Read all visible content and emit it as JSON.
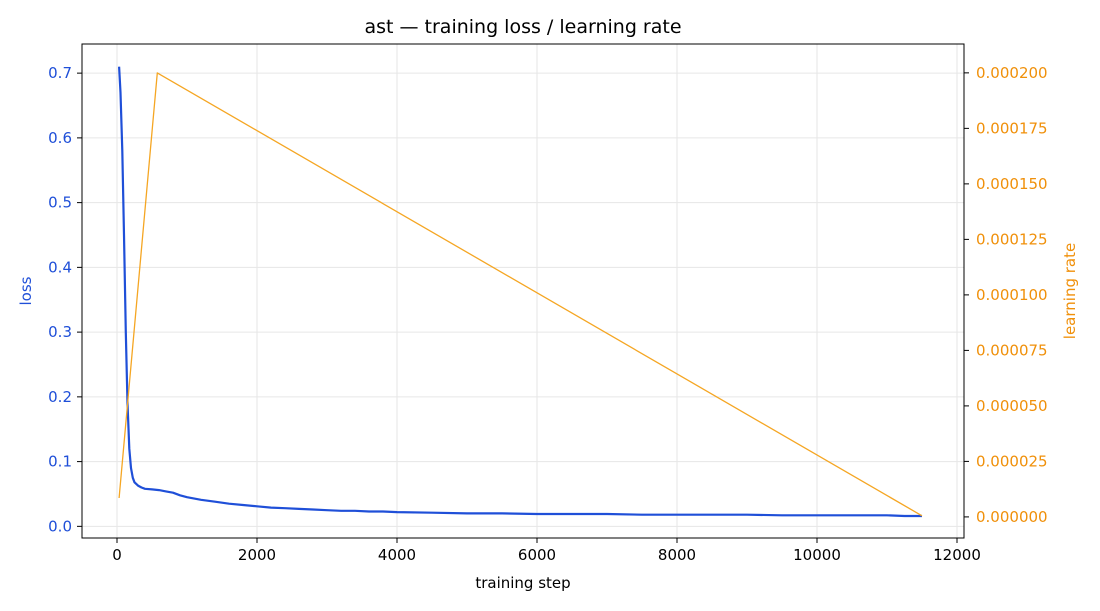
{
  "chart_data": {
    "type": "line",
    "title": "ast — training loss / learning rate",
    "xlabel": "training step",
    "ylabel_left": "loss",
    "ylabel_right": "learning rate",
    "xlim": [
      -500,
      12100
    ],
    "ylim_left": [
      -0.018,
      0.745
    ],
    "ylim_right": [
      -9.5e-06,
      0.000213
    ],
    "x_ticks": [
      0,
      2000,
      4000,
      6000,
      8000,
      10000,
      12000
    ],
    "x_tick_labels": [
      "0",
      "2000",
      "4000",
      "6000",
      "8000",
      "10000",
      "12000"
    ],
    "y_left_ticks": [
      0.0,
      0.1,
      0.2,
      0.3,
      0.4,
      0.5,
      0.6,
      0.7
    ],
    "y_left_tick_labels": [
      "0.0",
      "0.1",
      "0.2",
      "0.3",
      "0.4",
      "0.5",
      "0.6",
      "0.7"
    ],
    "y_right_ticks": [
      0.0,
      2.5e-05,
      5e-05,
      7.5e-05,
      0.0001,
      0.000125,
      0.00015,
      0.000175,
      0.0002
    ],
    "y_right_tick_labels": [
      "0.000000",
      "0.000025",
      "0.000050",
      "0.000075",
      "0.000100",
      "0.000125",
      "0.000150",
      "0.000175",
      "0.000200"
    ],
    "grid": true,
    "colors": {
      "loss": "#1f4fd8",
      "learning_rate": "#f5a623",
      "left_axis_text": "#1f4fd8",
      "right_axis_text": "#f0900a",
      "grid": "#e6e6e6",
      "axes": "#000000"
    },
    "series": [
      {
        "axis": "left",
        "x": [
          30,
          50,
          75,
          100,
          125,
          150,
          175,
          200,
          225,
          250,
          300,
          350,
          400,
          500,
          600,
          700,
          800,
          900,
          1000,
          1200,
          1400,
          1600,
          1800,
          2000,
          2200,
          2400,
          2600,
          2800,
          3000,
          3200,
          3400,
          3600,
          3800,
          4000,
          4500,
          5000,
          5500,
          6000,
          6500,
          7000,
          7500,
          8000,
          8500,
          9000,
          9500,
          10000,
          10500,
          11000,
          11250,
          11500
        ],
        "y": [
          0.71,
          0.67,
          0.58,
          0.45,
          0.3,
          0.19,
          0.12,
          0.09,
          0.075,
          0.068,
          0.063,
          0.06,
          0.058,
          0.057,
          0.056,
          0.054,
          0.052,
          0.048,
          0.045,
          0.041,
          0.038,
          0.035,
          0.033,
          0.031,
          0.029,
          0.028,
          0.027,
          0.026,
          0.025,
          0.024,
          0.024,
          0.023,
          0.023,
          0.022,
          0.021,
          0.02,
          0.02,
          0.019,
          0.019,
          0.019,
          0.018,
          0.018,
          0.018,
          0.018,
          0.017,
          0.017,
          0.017,
          0.017,
          0.016,
          0.016
        ]
      },
      {
        "axis": "right",
        "x": [
          30,
          575,
          11500
        ],
        "y": [
          8.5e-06,
          0.0002,
          5e-07
        ]
      }
    ]
  }
}
